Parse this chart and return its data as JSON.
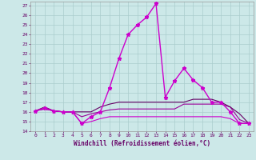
{
  "xlabel": "Windchill (Refroidissement éolien,°C)",
  "background_color": "#cce8e8",
  "grid_color": "#aacccc",
  "xlim": [
    -0.5,
    23.5
  ],
  "ylim": [
    14,
    27.4
  ],
  "xticks": [
    0,
    1,
    2,
    3,
    4,
    5,
    6,
    7,
    8,
    9,
    10,
    11,
    12,
    13,
    14,
    15,
    16,
    17,
    18,
    19,
    20,
    21,
    22,
    23
  ],
  "yticks": [
    14,
    15,
    16,
    17,
    18,
    19,
    20,
    21,
    22,
    23,
    24,
    25,
    26,
    27
  ],
  "series": [
    {
      "x": [
        0,
        1,
        2,
        3,
        4,
        5,
        6,
        7,
        8,
        9,
        10,
        11,
        12,
        13,
        14,
        15,
        16,
        17,
        18,
        19,
        20,
        21,
        22,
        23
      ],
      "y": [
        16.1,
        16.4,
        16.1,
        16.0,
        16.0,
        14.8,
        15.5,
        16.0,
        18.5,
        21.5,
        24.0,
        25.0,
        25.8,
        27.2,
        17.5,
        19.2,
        20.5,
        19.3,
        18.5,
        17.0,
        17.0,
        16.0,
        14.8,
        14.8
      ],
      "color": "#cc00cc",
      "lw": 1.0,
      "marker": "*",
      "ms": 3.5
    },
    {
      "x": [
        0,
        1,
        2,
        3,
        4,
        5,
        6,
        7,
        8,
        9,
        10,
        11,
        12,
        13,
        14,
        15,
        16,
        17,
        18,
        19,
        20,
        21,
        22,
        23
      ],
      "y": [
        16.1,
        16.3,
        16.1,
        16.0,
        16.0,
        14.8,
        15.0,
        15.3,
        15.5,
        15.5,
        15.5,
        15.5,
        15.5,
        15.5,
        15.5,
        15.5,
        15.5,
        15.5,
        15.5,
        15.5,
        15.5,
        15.3,
        14.8,
        14.8
      ],
      "color": "#cc00cc",
      "lw": 0.8,
      "marker": null,
      "ms": 0
    },
    {
      "x": [
        0,
        1,
        2,
        3,
        4,
        5,
        6,
        7,
        8,
        9,
        10,
        11,
        12,
        13,
        14,
        15,
        16,
        17,
        18,
        19,
        20,
        21,
        22,
        23
      ],
      "y": [
        16.1,
        16.3,
        16.1,
        16.0,
        16.0,
        15.5,
        15.8,
        16.0,
        16.2,
        16.3,
        16.3,
        16.3,
        16.3,
        16.3,
        16.3,
        16.3,
        16.8,
        16.8,
        16.8,
        16.8,
        16.8,
        16.5,
        15.2,
        14.8
      ],
      "color": "#990099",
      "lw": 0.8,
      "marker": null,
      "ms": 0
    },
    {
      "x": [
        0,
        1,
        2,
        3,
        4,
        5,
        6,
        7,
        8,
        9,
        10,
        11,
        12,
        13,
        14,
        15,
        16,
        17,
        18,
        19,
        20,
        21,
        22,
        23
      ],
      "y": [
        16.1,
        16.5,
        16.1,
        16.0,
        16.0,
        16.0,
        16.0,
        16.5,
        16.8,
        17.0,
        17.0,
        17.0,
        17.0,
        17.0,
        17.0,
        17.0,
        17.0,
        17.3,
        17.3,
        17.3,
        17.0,
        16.5,
        15.8,
        14.8
      ],
      "color": "#660066",
      "lw": 0.8,
      "marker": null,
      "ms": 0
    }
  ]
}
